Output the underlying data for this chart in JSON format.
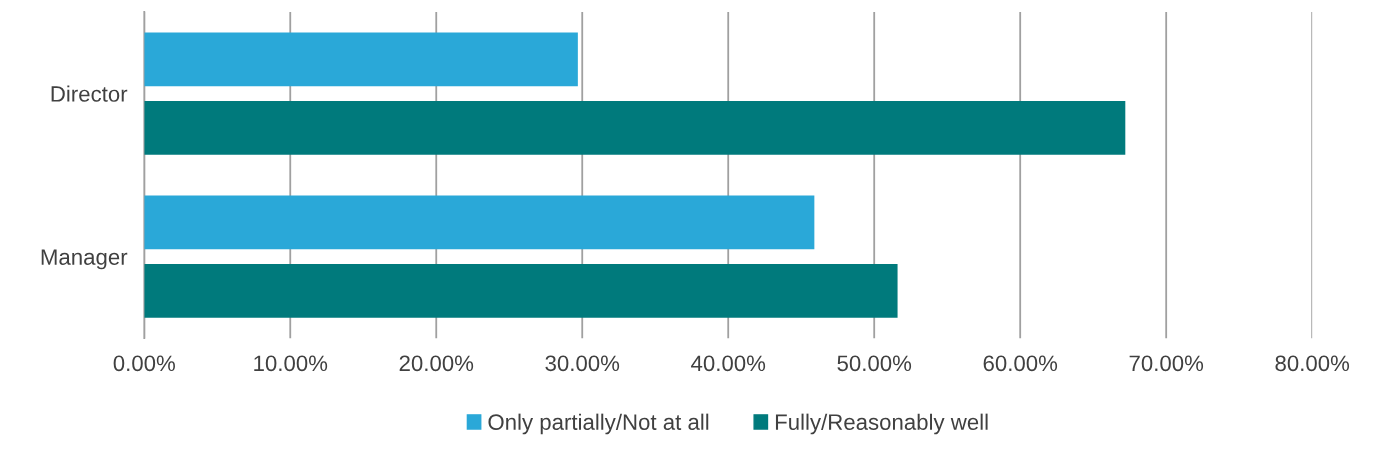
{
  "chart_data": {
    "type": "bar",
    "orientation": "horizontal",
    "categories": [
      "Director",
      "Manager"
    ],
    "series": [
      {
        "name": "Only partially/Not at all",
        "color": "#2aa8d8",
        "values": [
          0.297,
          0.459
        ]
      },
      {
        "name": "Fully/Reasonably well",
        "color": "#007a7c",
        "values": [
          0.672,
          0.516
        ]
      }
    ],
    "xlim": [
      0,
      0.8
    ],
    "xticks": [
      {
        "value": 0,
        "label": "0.00%"
      },
      {
        "value": 0.1,
        "label": "10.00%"
      },
      {
        "value": 0.2,
        "label": "20.00%"
      },
      {
        "value": 0.3,
        "label": "30.00%"
      },
      {
        "value": 0.4,
        "label": "40.00%"
      },
      {
        "value": 0.5,
        "label": "50.00%"
      },
      {
        "value": 0.6,
        "label": "60.00%"
      },
      {
        "value": 0.7,
        "label": "70.00%"
      },
      {
        "value": 0.8,
        "label": "80.00%"
      }
    ],
    "grid": "x",
    "legend": "bottom"
  }
}
